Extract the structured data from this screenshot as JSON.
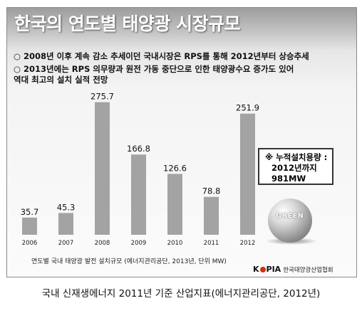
{
  "chart_data": {
    "type": "bar",
    "title": "한국의 연도별 태양광 시장규모",
    "categories": [
      "2006",
      "2007",
      "2008",
      "2009",
      "2010",
      "2011",
      "2012"
    ],
    "values": [
      35.7,
      45.3,
      275.7,
      166.8,
      126.6,
      78.8,
      251.9
    ],
    "value_labels": [
      "35.7",
      "45.3",
      "275.7",
      "166.8",
      "126.6",
      "78.8",
      "251.9"
    ],
    "ylim": [
      0,
      300
    ],
    "grid": false,
    "legend": "none",
    "bar_color": "#a3a3a3"
  },
  "bullets": [
    "○ 2008년 이후 계속 감소 추세이던 국내시장은 RPS를 통해 2012년부터 상승추세",
    "○ 2013년에는 RPS 의무량과 원전 가동 중단으로 인한 태양광수요 증가도 있어",
    "역대 최고의 설치 실적 전망"
  ],
  "note": {
    "line1": "※ 누적설치용량 :",
    "line2": "2012년까지",
    "line3": "981MW"
  },
  "globe_text": "GREEN",
  "source_note": "연도별 국내 태양광 발전 설치규모 (에너지관리공단, 2013년, 단위 MW)",
  "logo": {
    "mark_left": "K",
    "mark_right": "PIA",
    "org": "한국태양광산업협회"
  },
  "caption": "국내 신재생에너지 2011년 기준 산업지표(에너지관리공단, 2012년)"
}
